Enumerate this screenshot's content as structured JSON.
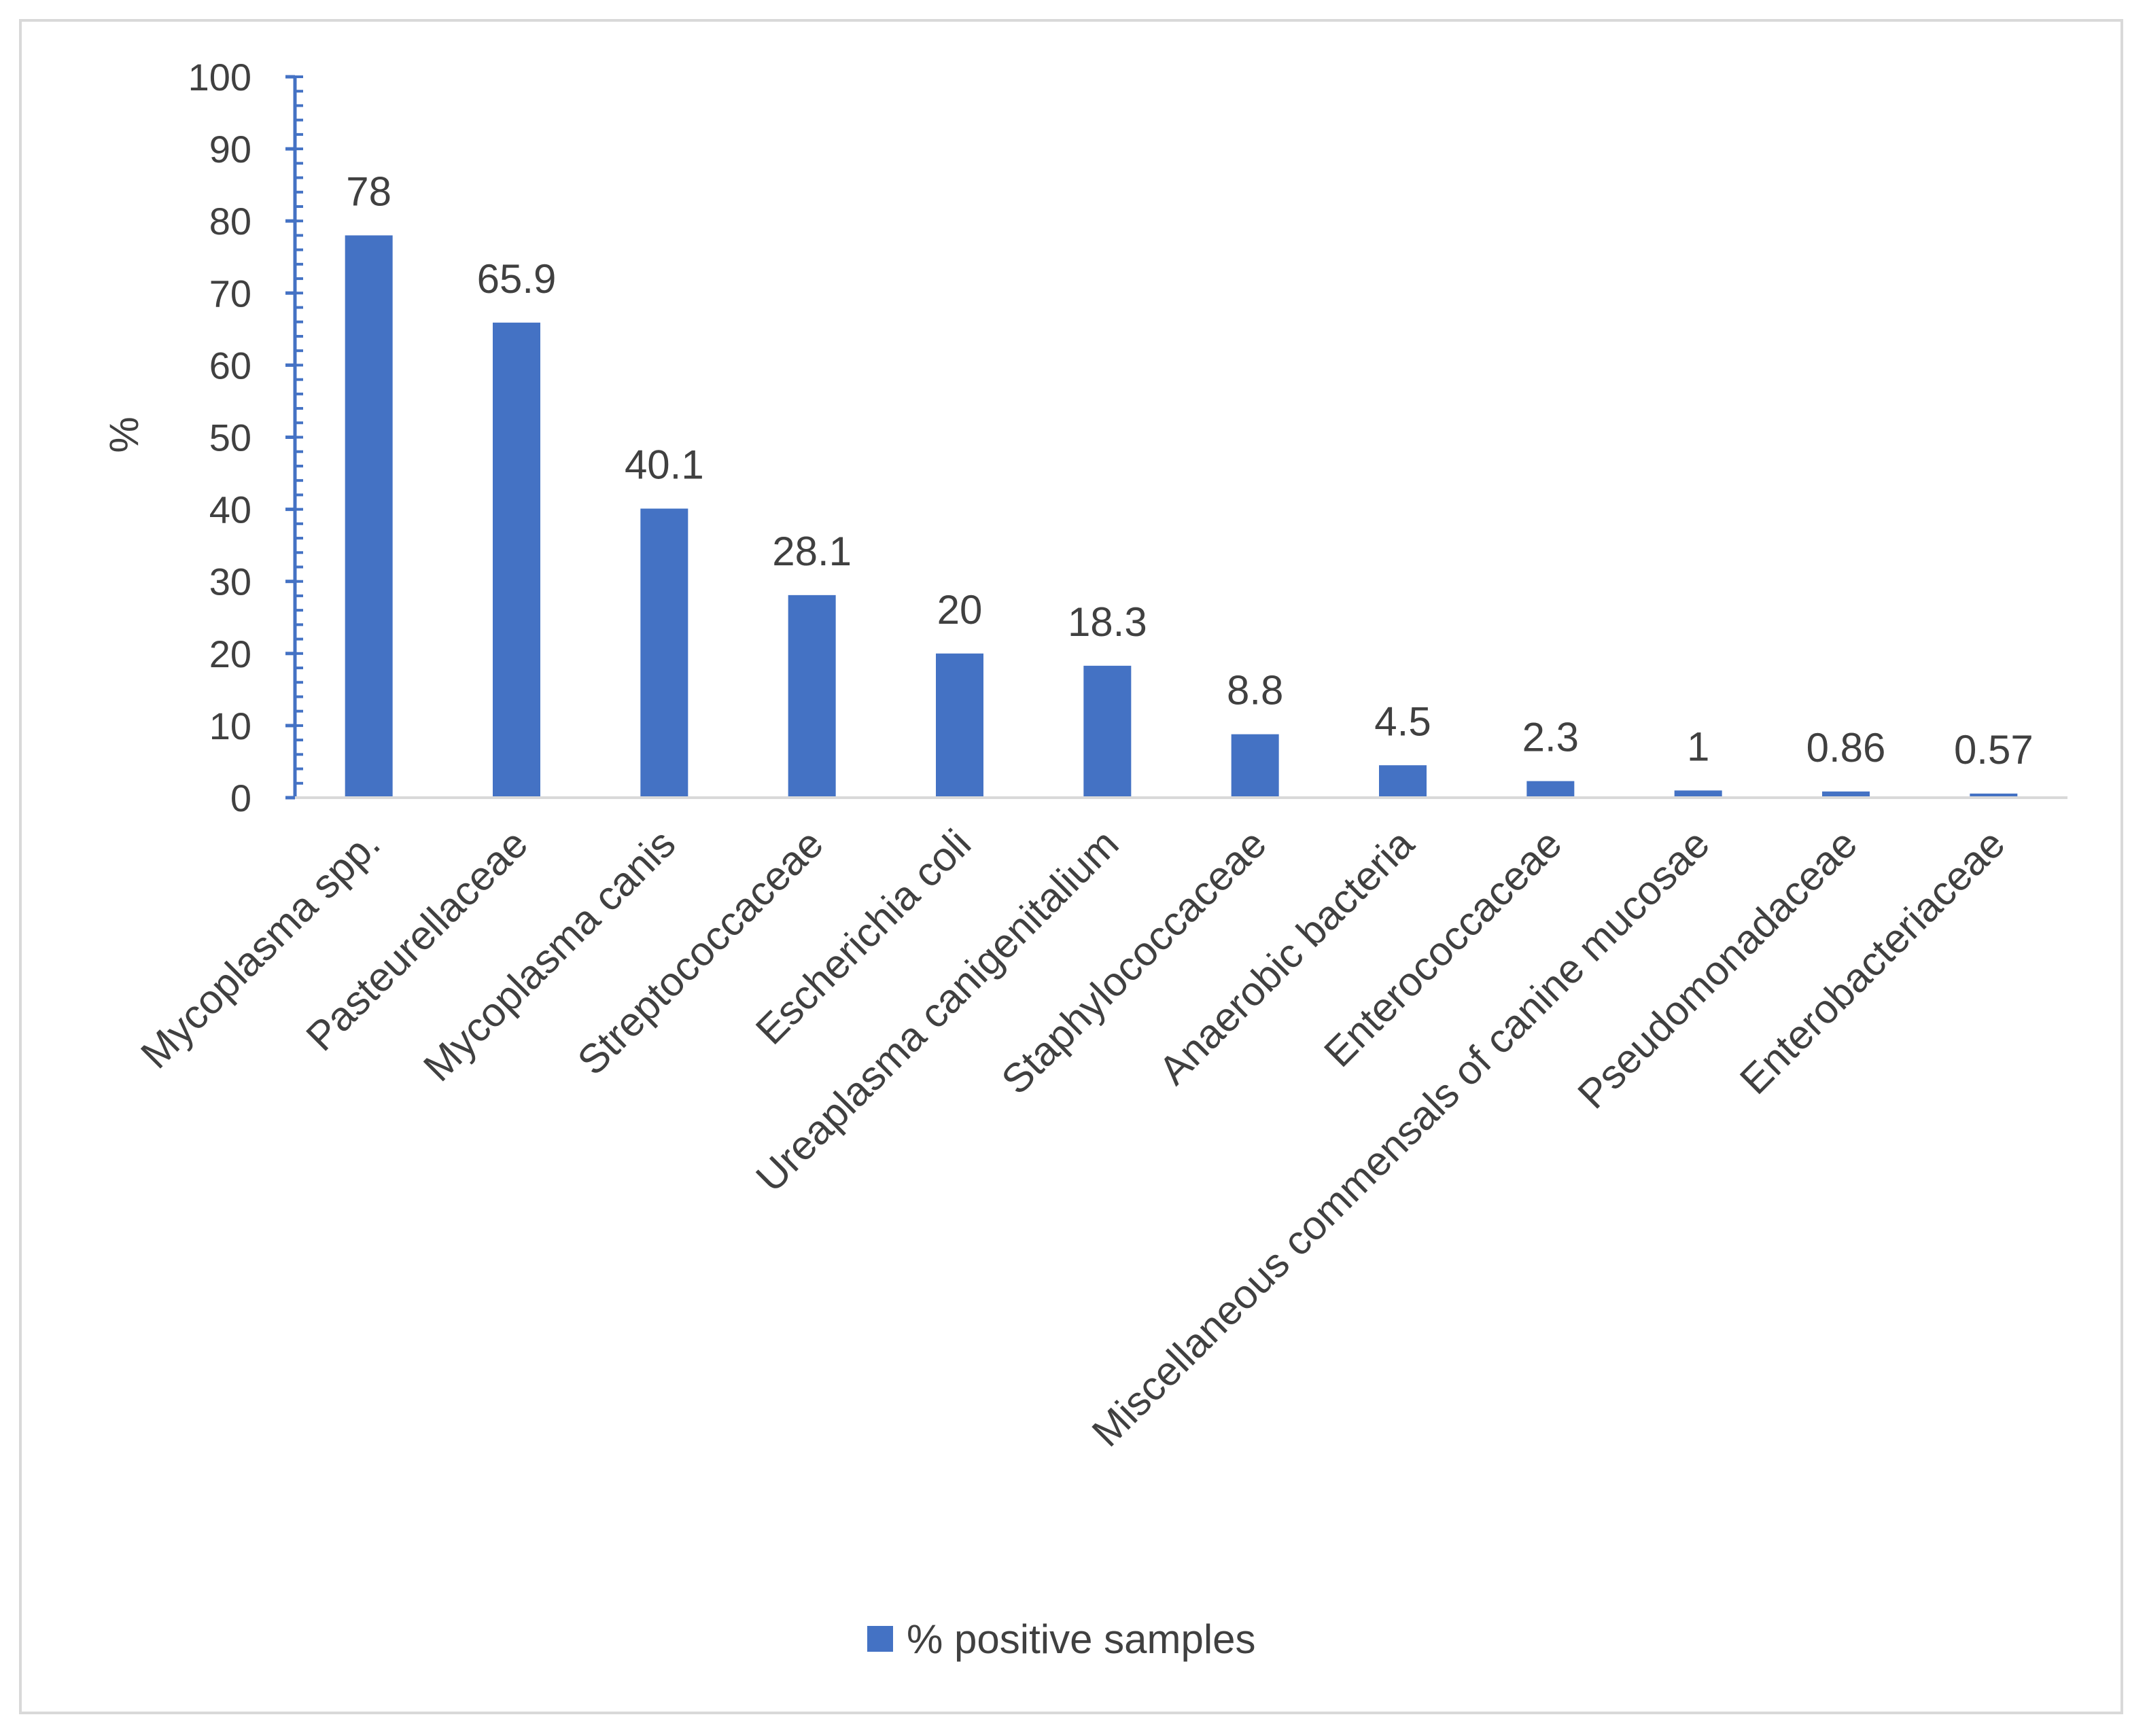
{
  "chart_data": {
    "type": "bar",
    "title": "",
    "xlabel": "",
    "ylabel": "%",
    "ylim": [
      0,
      100
    ],
    "yticks": [
      0,
      10,
      20,
      30,
      40,
      50,
      60,
      70,
      80,
      90,
      100
    ],
    "grid": false,
    "legend_position": "bottom",
    "categories": [
      "Mycoplasma spp.",
      "Pasteurellaceae",
      "Mycoplasma canis",
      "Streptococcaceae",
      "Escherichia coli",
      "Ureaplasma canigenitalium",
      "Staphylococcaceae",
      "Anaerobic bacteria",
      "Enterococcaceae",
      "Miscellaneous commensals of canine mucosae",
      "Pseudomonadaceae",
      "Enterobacteriaceae"
    ],
    "series": [
      {
        "name": "% positive samples",
        "color": "#4472c4",
        "values": [
          78,
          65.9,
          40.1,
          28.1,
          20,
          18.3,
          8.8,
          4.5,
          2.3,
          1,
          0.86,
          0.57
        ],
        "labels": [
          "78",
          "65.9",
          "40.1",
          "28.1",
          "20",
          "18.3",
          "8.8",
          "4.5",
          "2.3",
          "1",
          "0.86",
          "0.57"
        ]
      }
    ]
  }
}
